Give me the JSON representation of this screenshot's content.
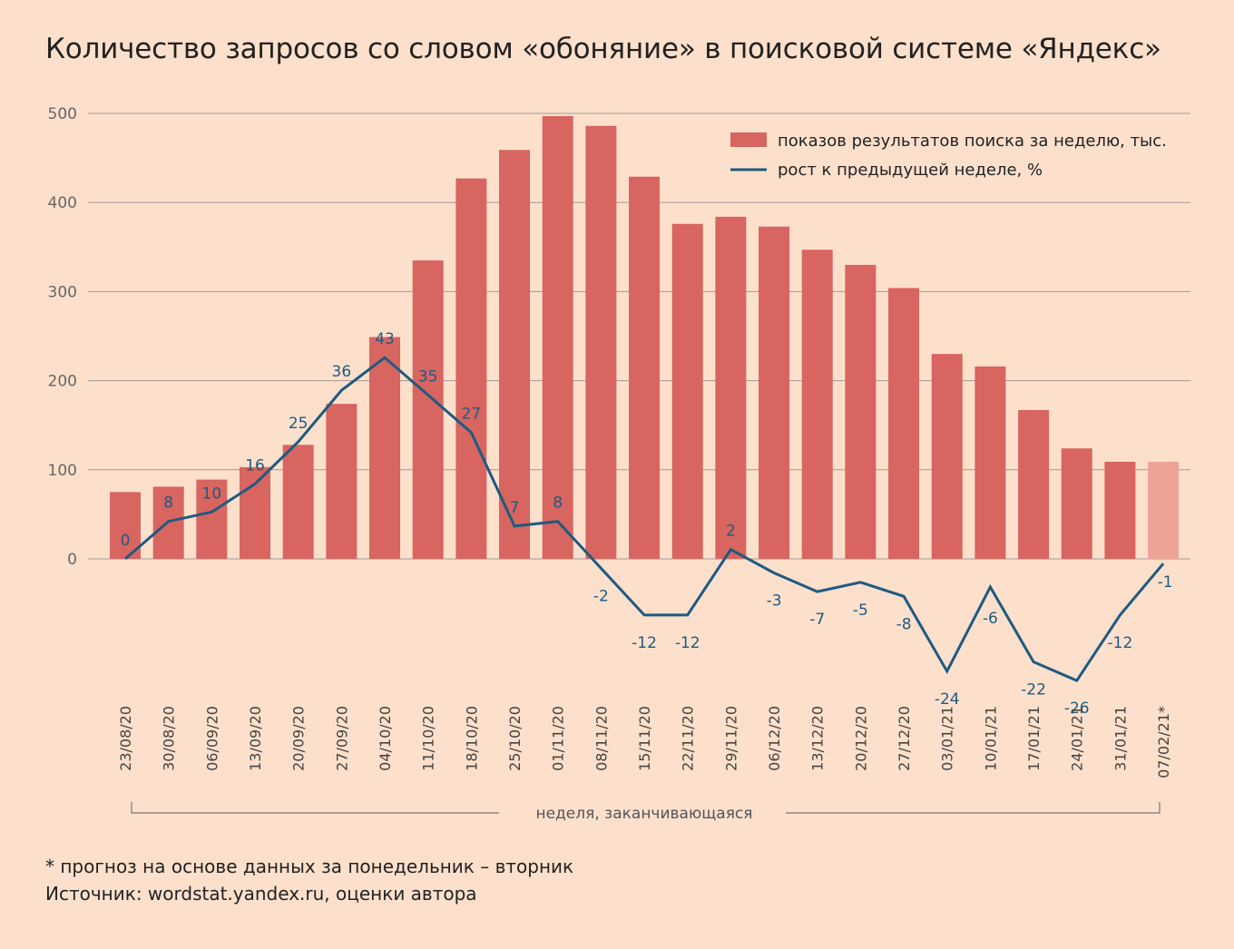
{
  "title": "Количество запросов со словом «обоняние» в поисковой системе «Яндекс»",
  "footnote": "* прогноз на основе данных за понедельник – вторник",
  "source": "Источник: wordstat.yandex.ru, оценки автора",
  "colors": {
    "bar": "#d86560",
    "bar_forecast": "#eea397",
    "line": "#1e5a80",
    "background": "#fde0cc",
    "grid": "#a09a96"
  },
  "chart_data": {
    "type": "bar",
    "categories": [
      "23/08/20",
      "30/08/20",
      "06/09/20",
      "13/09/20",
      "20/09/20",
      "27/09/20",
      "04/10/20",
      "11/10/20",
      "18/10/20",
      "25/10/20",
      "01/11/20",
      "08/11/20",
      "15/11/20",
      "22/11/20",
      "29/11/20",
      "06/12/20",
      "13/12/20",
      "20/12/20",
      "27/12/20",
      "03/01/21",
      "10/01/21",
      "17/01/21",
      "24/01/21",
      "31/01/21",
      "07/02/21*"
    ],
    "xlabel": "неделя, заканчивающаяся",
    "yticks": [
      "0",
      "100",
      "200",
      "300",
      "400",
      "500"
    ],
    "ylim": [
      0,
      500
    ],
    "forecast_index": 24,
    "series": [
      {
        "name": "показов результатов поиска за неделю, тыс.",
        "type": "bar",
        "values": [
          75,
          81,
          89,
          103,
          128,
          174,
          249,
          335,
          427,
          459,
          497,
          486,
          429,
          376,
          384,
          373,
          347,
          330,
          304,
          230,
          216,
          167,
          124,
          109,
          109
        ]
      },
      {
        "name": "рост к предыдущей неделе, %",
        "type": "line",
        "values": [
          0,
          8,
          10,
          16,
          25,
          36,
          43,
          35,
          27,
          7,
          8,
          -2,
          -12,
          -12,
          2,
          -3,
          -7,
          -5,
          -8,
          -24,
          -6,
          -22,
          -26,
          -12,
          -1
        ],
        "labels": [
          "0",
          "8",
          "10",
          "16",
          "25",
          "36",
          "43",
          "35",
          "27",
          "7",
          "8",
          "-2",
          "-12",
          "-12",
          "2",
          "-3",
          "-7",
          "-5",
          "-8",
          "-24",
          "-6",
          "-22",
          "-26",
          "-12",
          "-1"
        ]
      }
    ],
    "legend_position": "top-right",
    "grid": true
  }
}
